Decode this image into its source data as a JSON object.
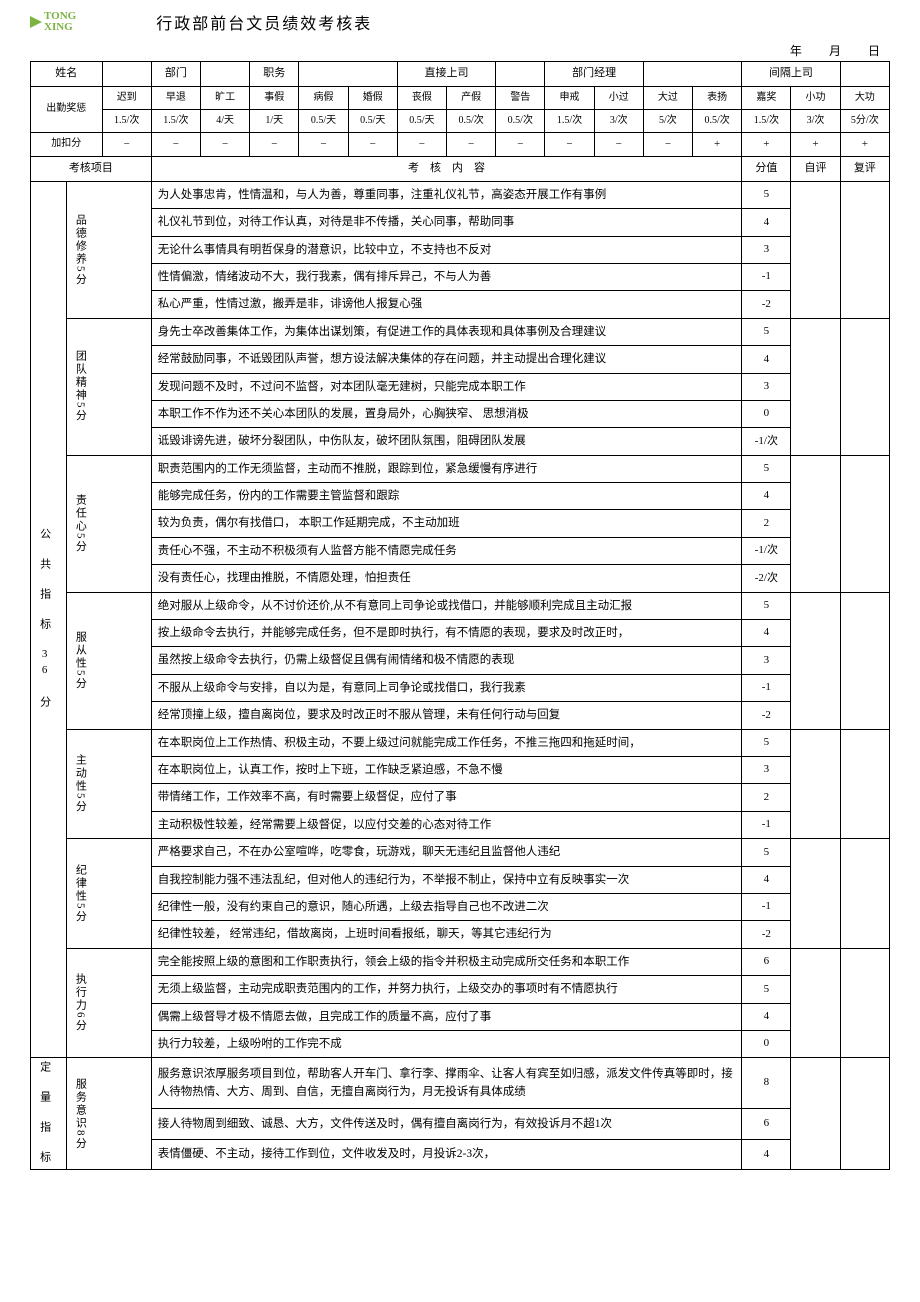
{
  "logo_text": "TONG\nXING",
  "title": "行政部前台文员绩效考核表",
  "date_labels": {
    "year": "年",
    "month": "月",
    "day": "日"
  },
  "info_row": {
    "name": "姓名",
    "dept": "部门",
    "post": "职务",
    "direct": "直接上司",
    "manager": "部门经理",
    "indirect": "间隔上司"
  },
  "attendance": {
    "header": "出勤奖惩",
    "cols": [
      "迟到",
      "早退",
      "旷工",
      "事假",
      "病假",
      "婚假",
      "丧假",
      "产假",
      "警告",
      "申戒",
      "小过",
      "大过",
      "表扬",
      "嘉奖",
      "小功",
      "大功"
    ],
    "vals": [
      "1.5/次",
      "1.5/次",
      "4/天",
      "1/天",
      "0.5/天",
      "0.5/天",
      "0.5/天",
      "0.5/次",
      "0.5/次",
      "1.5/次",
      "3/次",
      "5/次",
      "0.5/次",
      "1.5/次",
      "3/次",
      "5分/次"
    ]
  },
  "addsub": {
    "header": "加扣分",
    "cells": [
      "−",
      "−",
      "−",
      "−",
      "−",
      "−",
      "−",
      "−",
      "−",
      "−",
      "−",
      "−",
      "+",
      "+",
      "+",
      "+"
    ]
  },
  "eval_header": {
    "project": "考核项目",
    "content": "考　核　内　容",
    "score": "分值",
    "self": "自评",
    "review": "复评"
  },
  "big_cat1": "公　共　指　标　36 分",
  "big_cat2": "定　量　指　标",
  "categories": [
    {
      "name": "品德修养5分",
      "rows": [
        {
          "d": "为人处事忠肯，性情温和，与人为善，尊重同事，注重礼仪礼节，高姿态开展工作有事例",
          "s": "5"
        },
        {
          "d": "礼仪礼节到位，对待工作认真，对待是非不传播，关心同事，帮助同事",
          "s": "4"
        },
        {
          "d": "无论什么事情具有明哲保身的潜意识，比较中立，不支持也不反对",
          "s": "3"
        },
        {
          "d": "性情偏激，情绪波动不大，我行我素，偶有排斥异己，不与人为善",
          "s": "-1"
        },
        {
          "d": " 私心严重，性情过激，搬弄是非，诽谤他人报复心强",
          "s": "-2"
        }
      ]
    },
    {
      "name": "团队精神5分",
      "rows": [
        {
          "d": "身先士卒改善集体工作，为集体出谋划策，有促进工作的具体表现和具体事例及合理建议",
          "s": "5"
        },
        {
          "d": "经常鼓励同事，不诋毁团队声誉，想方设法解决集体的存在问题，并主动提出合理化建议",
          "s": "4"
        },
        {
          "d": "发现问题不及时，不过问不监督，对本团队毫无建树，只能完成本职工作",
          "s": "3"
        },
        {
          "d": "本职工作不作为还不关心本团队的发展，置身局外，心胸狭窄、 思想消极",
          "s": "0"
        },
        {
          "d": "诋毁诽谤先进，破坏分裂团队，中伤队友，破坏团队氛围，阻碍团队发展",
          "s": "-1/次"
        }
      ]
    },
    {
      "name": "责任心5分",
      "rows": [
        {
          "d": "职责范围内的工作无须监督，主动而不推脱，跟踪到位，紧急缓慢有序进行",
          "s": "5"
        },
        {
          "d": "能够完成任务，份内的工作需要主管监督和跟踪",
          "s": "4"
        },
        {
          "d": "较为负责，偶尔有找借口， 本职工作延期完成，不主动加班",
          "s": "2"
        },
        {
          "d": "责任心不强，不主动不积极须有人监督方能不情愿完成任务",
          "s": "-1/次"
        },
        {
          "d": "没有责任心，找理由推脱，不情愿处理，怕担责任",
          "s": "-2/次"
        }
      ]
    },
    {
      "name": "服从性5分",
      "rows": [
        {
          "d": "绝对服从上级命令，从不讨价还价,从不有意同上司争论或找借口，并能够顺利完成且主动汇报",
          "s": "5"
        },
        {
          "d": "按上级命令去执行，并能够完成任务，但不是即时执行，有不情愿的表现，要求及时改正时，",
          "s": "4"
        },
        {
          "d": "虽然按上级命令去执行，仍需上级督促且偶有闹情绪和极不情愿的表现",
          "s": "3"
        },
        {
          "d": "不服从上级命令与安排，自以为是，有意同上司争论或找借口，我行我素",
          "s": "-1"
        },
        {
          "d": "经常顶撞上级，擅自离岗位，要求及时改正时不服从管理，未有任何行动与回复",
          "s": "-2"
        }
      ]
    },
    {
      "name": "主动性5分",
      "rows": [
        {
          "d": "在本职岗位上工作热情、积极主动，不要上级过问就能完成工作任务，不推三拖四和拖延时间，",
          "s": "5"
        },
        {
          "d": "在本职岗位上，认真工作，按时上下班，工作缺乏紧迫感，不急不慢",
          "s": "3"
        },
        {
          "d": "带情绪工作，工作效率不高，有时需要上级督促，应付了事",
          "s": "2"
        },
        {
          "d": "主动积极性较差，经常需要上级督促，以应付交差的心态对待工作",
          "s": "-1"
        }
      ]
    },
    {
      "name": "纪律性5分",
      "rows": [
        {
          "d": "严格要求自己，不在办公室喧哗，吃零食，玩游戏，聊天无违纪且监督他人违纪",
          "s": "5"
        },
        {
          "d": "自我控制能力强不违法乱纪，但对他人的违纪行为，不举报不制止，保持中立有反映事实一次",
          "s": "4"
        },
        {
          "d": "纪律性一般，没有约束自己的意识，随心所遇，上级去指导自己也不改进二次",
          "s": "-1"
        },
        {
          "d": "纪律性较差， 经常违纪，借故离岗，上班时间看报纸，聊天，等其它违纪行为",
          "s": "-2"
        }
      ]
    },
    {
      "name": "执行力6分",
      "rows": [
        {
          "d": "完全能按照上级的意图和工作职责执行，领会上级的指令并积极主动完成所交任务和本职工作",
          "s": "6"
        },
        {
          "d": "无须上级监督，主动完成职责范围内的工作，并努力执行，上级交办的事项时有不情愿执行",
          "s": "5"
        },
        {
          "d": "偶需上级督导才极不情愿去做，且完成工作的质量不高，应付了事",
          "s": "4"
        },
        {
          "d": "执行力较差，上级吩咐的工作完不成",
          "s": "0"
        }
      ]
    },
    {
      "name": "服务意识8分",
      "rows": [
        {
          "d": "服务意识浓厚服务项目到位，帮助客人开车门、拿行李、撑雨伞、让客人有宾至如归感，派发文件传真等即时，接人待物热情、大方、周到、自信，无擅自离岗行为，月无投诉有具体成绩",
          "s": "8"
        },
        {
          "d": "接人待物周到细致、诚恳、大方，文件传送及时，偶有擅自离岗行为，有效投诉月不超1次",
          "s": "6"
        },
        {
          "d": "表情僵硬、不主动，接待工作到位，文件收发及时，月投诉2-3次，",
          "s": "4"
        }
      ]
    }
  ]
}
